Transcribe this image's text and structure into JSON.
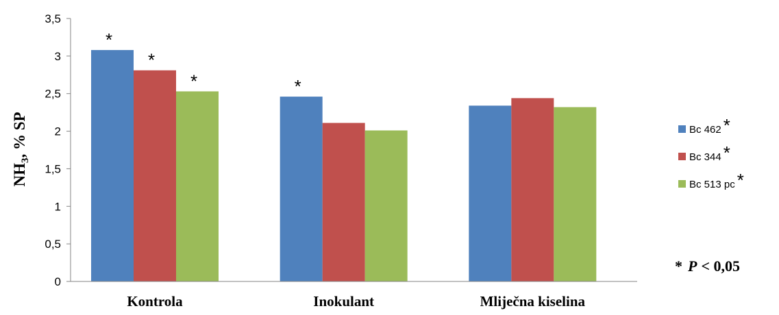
{
  "chart_data": {
    "type": "bar",
    "categories": [
      "Kontrola",
      "Inokulant",
      "Mliječna kiselina"
    ],
    "series": [
      {
        "name": "Bc 462",
        "values": [
          3.08,
          2.46,
          2.34
        ],
        "color": "#4f81bd",
        "significant": true
      },
      {
        "name": "Bc 344",
        "values": [
          2.81,
          2.11,
          2.44
        ],
        "color": "#c0504d",
        "significant": true
      },
      {
        "name": "Bc 513 pc",
        "values": [
          2.53,
          2.01,
          2.32
        ],
        "color": "#9bbb59",
        "significant": true
      }
    ],
    "significance_markers": [
      {
        "category": "Kontrola",
        "series": "Bc 462",
        "label": "*"
      },
      {
        "category": "Kontrola",
        "series": "Bc 344",
        "label": "*"
      },
      {
        "category": "Kontrola",
        "series": "Bc 513 pc",
        "label": "*"
      },
      {
        "category": "Inokulant",
        "series": "Bc 462",
        "label": "*"
      }
    ],
    "title": "",
    "xlabel": "",
    "ylabel_main": "NH",
    "ylabel_sub": "3",
    "ylabel_rest": ", % SP",
    "ylim": [
      0,
      3.5
    ],
    "yticks": [
      0,
      0.5,
      1,
      1.5,
      2,
      2.5,
      3,
      3.5
    ],
    "ytick_labels": [
      "0",
      "0,5",
      "1",
      "1,5",
      "2",
      "2,5",
      "3",
      "3,5"
    ],
    "grid": false,
    "legend_position": "right",
    "legend_marker": "*",
    "note_star": "*",
    "note_p": "P",
    "note_rest": "< 0,05"
  }
}
